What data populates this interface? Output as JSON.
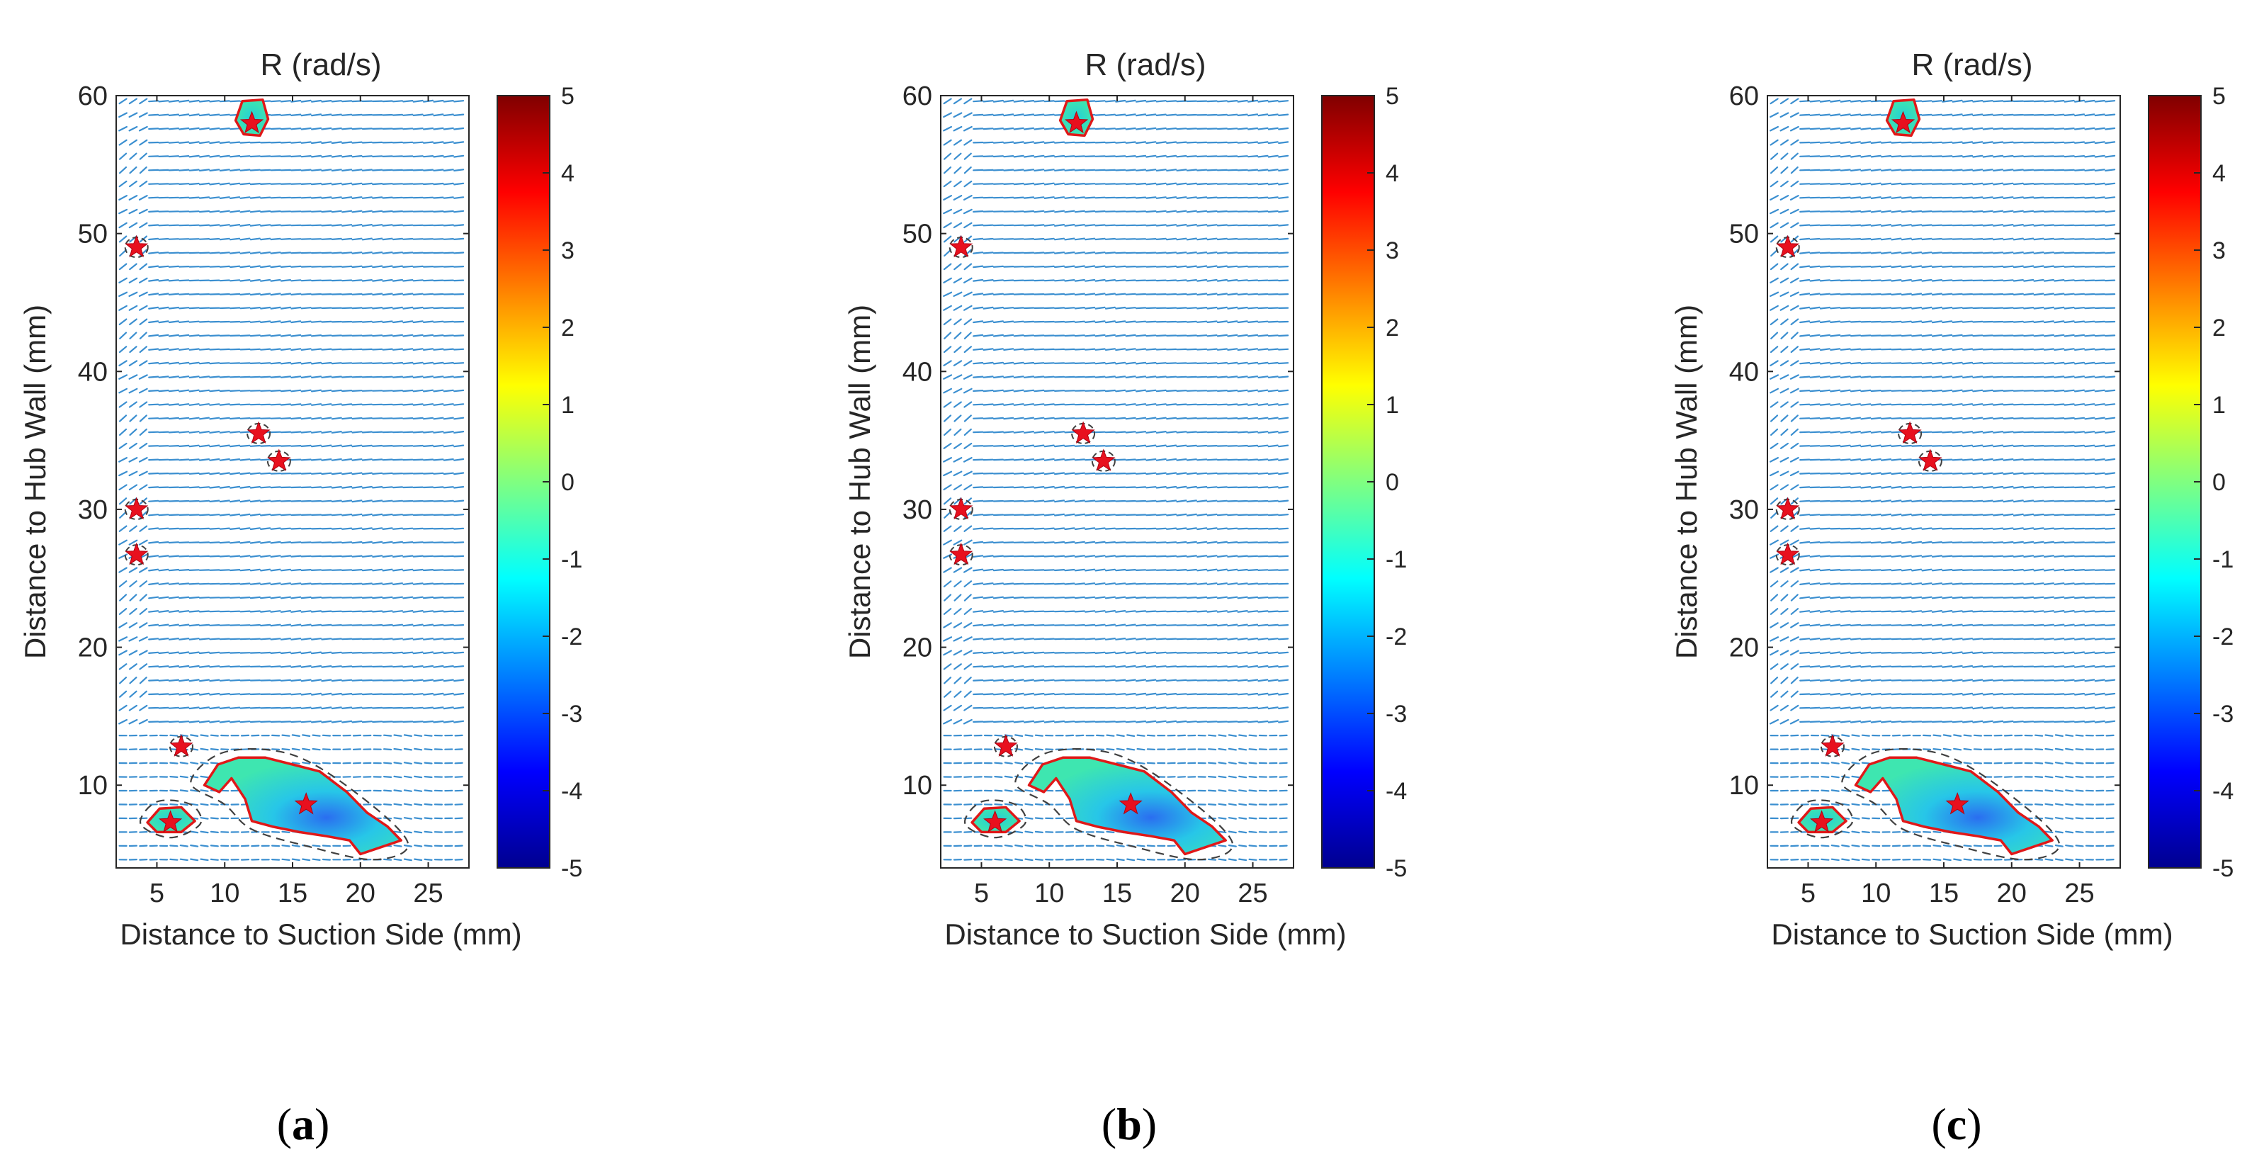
{
  "figure": {
    "captions": [
      {
        "open": "(",
        "letter": "a",
        "close": ")"
      },
      {
        "open": "(",
        "letter": "b",
        "close": ")"
      },
      {
        "open": "(",
        "letter": "c",
        "close": ")"
      }
    ]
  },
  "colors": {
    "vector": "#3b8fd0",
    "star": "#e8101e",
    "boundary": "#e01818",
    "dashed": "#404040",
    "axis": "#262626"
  },
  "chart_data": [
    {
      "panel": "a",
      "type": "heatmap",
      "title": "R (rad/s)",
      "xlabel": "Distance to Suction Side (mm)",
      "ylabel": "Distance to Hub Wall (mm)",
      "xlim": [
        2,
        28
      ],
      "ylim": [
        4,
        60
      ],
      "xticks": [
        5,
        10,
        15,
        20,
        25
      ],
      "yticks": [
        10,
        20,
        30,
        40,
        50,
        60
      ],
      "colorbar": {
        "min": -5,
        "max": 5,
        "ticks": [
          5,
          4,
          3,
          2,
          1,
          0,
          -1,
          -2,
          -3,
          -4,
          -5
        ],
        "colormap": "jet"
      },
      "vortex_centers": [
        [
          12,
          58
        ],
        [
          3.5,
          49
        ],
        [
          12.5,
          35.5
        ],
        [
          14,
          33.5
        ],
        [
          3.5,
          30
        ],
        [
          3.5,
          26.7
        ],
        [
          6.8,
          12.8
        ],
        [
          6,
          7.3
        ],
        [
          16,
          8.6
        ]
      ],
      "regions": [
        {
          "name": "top-vortex",
          "points": [
            [
              10.8,
              58.2
            ],
            [
              11.3,
              59.6
            ],
            [
              12.8,
              59.7
            ],
            [
              13.2,
              58.3
            ],
            [
              12.6,
              57.1
            ],
            [
              11.4,
              57.2
            ]
          ]
        },
        {
          "name": "bottom-left-vortex",
          "points": [
            [
              4.3,
              7.3
            ],
            [
              5.2,
              8.3
            ],
            [
              6.8,
              8.4
            ],
            [
              7.8,
              7.4
            ],
            [
              6.8,
              6.6
            ],
            [
              5.0,
              6.6
            ]
          ]
        },
        {
          "name": "main-vortex",
          "points": [
            [
              8.5,
              10
            ],
            [
              9.5,
              11.5
            ],
            [
              11,
              12
            ],
            [
              13,
              12
            ],
            [
              15,
              11.5
            ],
            [
              17,
              11
            ],
            [
              19,
              9.5
            ],
            [
              20.5,
              8
            ],
            [
              22,
              7
            ],
            [
              23,
              6
            ],
            [
              21.5,
              5.5
            ],
            [
              20,
              5
            ],
            [
              19.2,
              6
            ],
            [
              17.5,
              6.3
            ],
            [
              15.5,
              6.6
            ],
            [
              13.5,
              7
            ],
            [
              12,
              7.4
            ],
            [
              11.5,
              9
            ],
            [
              10.5,
              10.5
            ],
            [
              9.6,
              9.5
            ]
          ]
        }
      ],
      "dashed_loops": [
        {
          "points": [
            [
              7.5,
              10.2
            ],
            [
              10,
              12.4
            ],
            [
              15,
              12.2
            ],
            [
              20,
              9.2
            ],
            [
              23.5,
              5.8
            ],
            [
              21,
              4.6
            ],
            [
              16,
              5.6
            ],
            [
              12,
              6.8
            ],
            [
              10,
              8.6
            ]
          ]
        },
        {
          "points": [
            [
              3.8,
              7.2
            ],
            [
              5,
              8.8
            ],
            [
              7.5,
              8.6
            ],
            [
              8.2,
              7.2
            ],
            [
              6,
              6.2
            ]
          ]
        }
      ]
    },
    {
      "panel": "b",
      "type": "heatmap",
      "title": "R (rad/s)",
      "xlabel": "Distance to Suction Side (mm)",
      "ylabel": "Distance to Hub Wall (mm)",
      "xlim": [
        2,
        28
      ],
      "ylim": [
        4,
        60
      ],
      "xticks": [
        5,
        10,
        15,
        20,
        25
      ],
      "yticks": [
        10,
        20,
        30,
        40,
        50,
        60
      ],
      "colorbar": {
        "min": -5,
        "max": 5,
        "ticks": [
          5,
          4,
          3,
          2,
          1,
          0,
          -1,
          -2,
          -3,
          -4,
          -5
        ],
        "colormap": "jet"
      },
      "vortex_centers": [
        [
          12,
          58
        ],
        [
          3.5,
          49
        ],
        [
          12.5,
          35.5
        ],
        [
          14,
          33.5
        ],
        [
          3.5,
          30
        ],
        [
          3.5,
          26.7
        ],
        [
          6.8,
          12.8
        ],
        [
          6,
          7.3
        ],
        [
          16,
          8.6
        ]
      ],
      "regions": [
        {
          "name": "top-vortex",
          "points": [
            [
              10.8,
              58.2
            ],
            [
              11.3,
              59.6
            ],
            [
              12.8,
              59.7
            ],
            [
              13.2,
              58.3
            ],
            [
              12.6,
              57.1
            ],
            [
              11.4,
              57.2
            ]
          ]
        },
        {
          "name": "bottom-left-vortex",
          "points": [
            [
              4.3,
              7.3
            ],
            [
              5.2,
              8.3
            ],
            [
              6.8,
              8.4
            ],
            [
              7.8,
              7.4
            ],
            [
              6.8,
              6.6
            ],
            [
              5.0,
              6.6
            ]
          ]
        },
        {
          "name": "main-vortex",
          "points": [
            [
              8.5,
              10
            ],
            [
              9.5,
              11.5
            ],
            [
              11,
              12
            ],
            [
              13,
              12
            ],
            [
              15,
              11.5
            ],
            [
              17,
              11
            ],
            [
              19,
              9.5
            ],
            [
              20.5,
              8
            ],
            [
              22,
              7
            ],
            [
              23,
              6
            ],
            [
              21.5,
              5.5
            ],
            [
              20,
              5
            ],
            [
              19.2,
              6
            ],
            [
              17.5,
              6.3
            ],
            [
              15.5,
              6.6
            ],
            [
              13.5,
              7
            ],
            [
              12,
              7.4
            ],
            [
              11.5,
              9
            ],
            [
              10.5,
              10.5
            ],
            [
              9.6,
              9.5
            ]
          ]
        }
      ],
      "dashed_loops": [
        {
          "points": [
            [
              7.5,
              10.2
            ],
            [
              10,
              12.4
            ],
            [
              15,
              12.2
            ],
            [
              20,
              9.2
            ],
            [
              23.5,
              5.8
            ],
            [
              21,
              4.6
            ],
            [
              16,
              5.6
            ],
            [
              12,
              6.8
            ],
            [
              10,
              8.6
            ]
          ]
        },
        {
          "points": [
            [
              3.8,
              7.2
            ],
            [
              5,
              8.8
            ],
            [
              7.5,
              8.6
            ],
            [
              8.2,
              7.2
            ],
            [
              6,
              6.2
            ]
          ]
        }
      ]
    },
    {
      "panel": "c",
      "type": "heatmap",
      "title": "R (rad/s)",
      "xlabel": "Distance to Suction Side (mm)",
      "ylabel": "Distance to Hub Wall (mm)",
      "xlim": [
        2,
        28
      ],
      "ylim": [
        4,
        60
      ],
      "xticks": [
        5,
        10,
        15,
        20,
        25
      ],
      "yticks": [
        10,
        20,
        30,
        40,
        50,
        60
      ],
      "colorbar": {
        "min": -5,
        "max": 5,
        "ticks": [
          5,
          4,
          3,
          2,
          1,
          0,
          -1,
          -2,
          -3,
          -4,
          -5
        ],
        "colormap": "jet"
      },
      "vortex_centers": [
        [
          12,
          58
        ],
        [
          3.5,
          49
        ],
        [
          12.5,
          35.5
        ],
        [
          14,
          33.5
        ],
        [
          3.5,
          30
        ],
        [
          3.5,
          26.7
        ],
        [
          6.8,
          12.8
        ],
        [
          6,
          7.3
        ],
        [
          16,
          8.6
        ]
      ],
      "regions": [
        {
          "name": "top-vortex",
          "points": [
            [
              10.8,
              58.2
            ],
            [
              11.3,
              59.6
            ],
            [
              12.8,
              59.7
            ],
            [
              13.2,
              58.3
            ],
            [
              12.6,
              57.1
            ],
            [
              11.4,
              57.2
            ]
          ]
        },
        {
          "name": "bottom-left-vortex",
          "points": [
            [
              4.3,
              7.3
            ],
            [
              5.2,
              8.3
            ],
            [
              6.8,
              8.4
            ],
            [
              7.8,
              7.4
            ],
            [
              6.8,
              6.6
            ],
            [
              5.0,
              6.6
            ]
          ]
        },
        {
          "name": "main-vortex",
          "points": [
            [
              8.5,
              10
            ],
            [
              9.5,
              11.5
            ],
            [
              11,
              12
            ],
            [
              13,
              12
            ],
            [
              15,
              11.5
            ],
            [
              17,
              11
            ],
            [
              19,
              9.5
            ],
            [
              20.5,
              8
            ],
            [
              22,
              7
            ],
            [
              23,
              6
            ],
            [
              21.5,
              5.5
            ],
            [
              20,
              5
            ],
            [
              19.2,
              6
            ],
            [
              17.5,
              6.3
            ],
            [
              15.5,
              6.6
            ],
            [
              13.5,
              7
            ],
            [
              12,
              7.4
            ],
            [
              11.5,
              9
            ],
            [
              10.5,
              10.5
            ],
            [
              9.6,
              9.5
            ]
          ]
        }
      ],
      "dashed_loops": [
        {
          "points": [
            [
              7.5,
              10.2
            ],
            [
              10,
              12.4
            ],
            [
              15,
              12.2
            ],
            [
              20,
              9.2
            ],
            [
              23.5,
              5.8
            ],
            [
              21,
              4.6
            ],
            [
              16,
              5.6
            ],
            [
              12,
              6.8
            ],
            [
              10,
              8.6
            ]
          ]
        },
        {
          "points": [
            [
              3.8,
              7.2
            ],
            [
              5,
              8.8
            ],
            [
              7.5,
              8.6
            ],
            [
              8.2,
              7.2
            ],
            [
              6,
              6.2
            ]
          ]
        }
      ]
    }
  ]
}
